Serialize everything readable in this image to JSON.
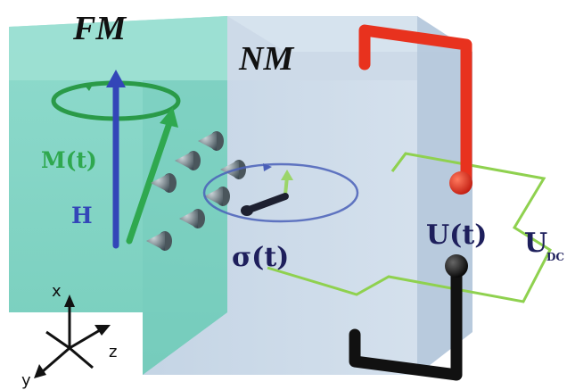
{
  "regions": {
    "fm_label": "FM",
    "nm_label": "NM"
  },
  "vectors": {
    "magnetization_label": "M(t)",
    "field_label": "H"
  },
  "spin": {
    "label": "σ(t)"
  },
  "circuit": {
    "voltage_label": "U(t)",
    "dc_label_main": "U",
    "dc_label_sub": "DC"
  },
  "axes": {
    "x_label": "x",
    "y_label": "y",
    "z_label": "z"
  },
  "colors": {
    "fm_block": "#7fd6c6",
    "nm_block": "#c9d9e8",
    "magnetization": "#2fa84f",
    "field": "#3346b8",
    "spin_current": "#3c4a52",
    "probe_top": "#e8321e",
    "probe_bottom": "#111111",
    "circuit_wire": "#8fd14f",
    "spin_label": "#1e1f5c"
  }
}
